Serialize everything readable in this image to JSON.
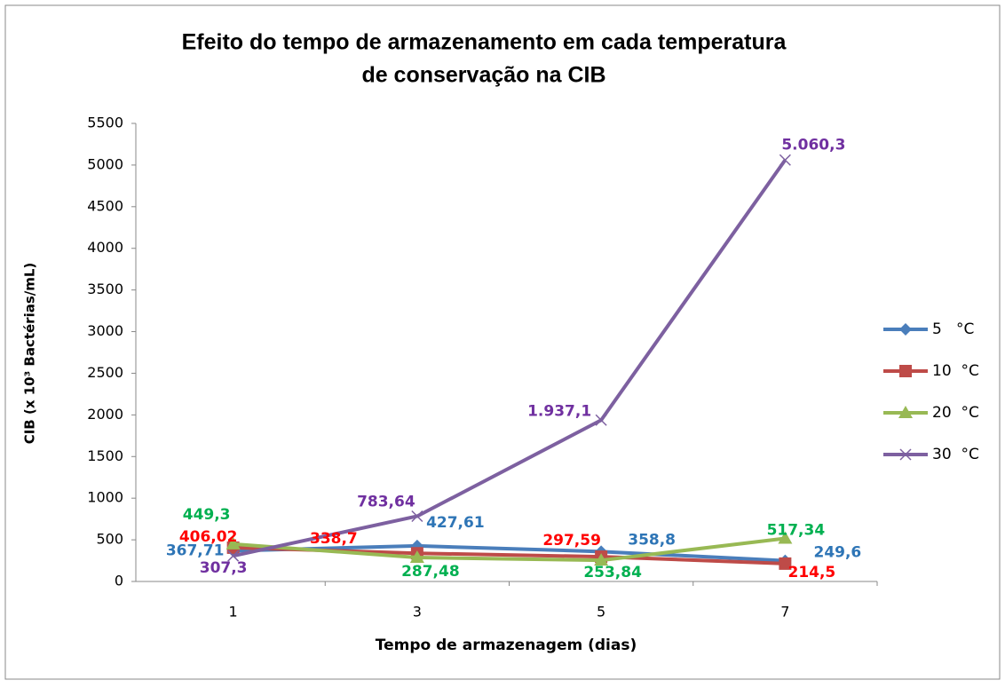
{
  "chart_data": {
    "type": "line",
    "title": [
      "Efeito do tempo de armazenamento em cada temperatura",
      "de conservação na CIB"
    ],
    "x_label": "Tempo de armazenagem  (dias)",
    "y_label": "CIB (x 10³ Bactérias/mL)",
    "categories": [
      "1",
      "3",
      "5",
      "7"
    ],
    "ylim": [
      0,
      5500
    ],
    "yticks": [
      0,
      500,
      1000,
      1500,
      2000,
      2500,
      3000,
      3500,
      4000,
      4500,
      5000,
      5500
    ],
    "legend": "right",
    "series": [
      {
        "name": "5   °C",
        "color": "#4a7ebb",
        "label_color": "#2e75b6",
        "marker": "diamond",
        "values": [
          367.71,
          427.61,
          358.8,
          249.6
        ],
        "value_labels": [
          "367,71",
          "427,61",
          "358,8",
          "249,6"
        ]
      },
      {
        "name": "10  °C",
        "color": "#be4b48",
        "label_color": "#ff0000",
        "marker": "square",
        "values": [
          406.02,
          338.7,
          297.59,
          214.5
        ],
        "value_labels": [
          "406,02",
          "338,7",
          "297,59",
          "214,5"
        ]
      },
      {
        "name": "20  °C",
        "color": "#98b954",
        "label_color": "#00b050",
        "marker": "triangle",
        "values": [
          449.3,
          287.48,
          253.84,
          517.34
        ],
        "value_labels": [
          "449,3",
          "287,48",
          "253,84",
          "517,34"
        ]
      },
      {
        "name": "30  °C",
        "color": "#7d60a0",
        "label_color": "#7030a0",
        "marker": "x",
        "values": [
          307.3,
          783.64,
          1937.1,
          5060.3
        ],
        "value_labels": [
          "307,3",
          "783,64",
          "1.937,1",
          "5.060,3"
        ]
      }
    ]
  }
}
